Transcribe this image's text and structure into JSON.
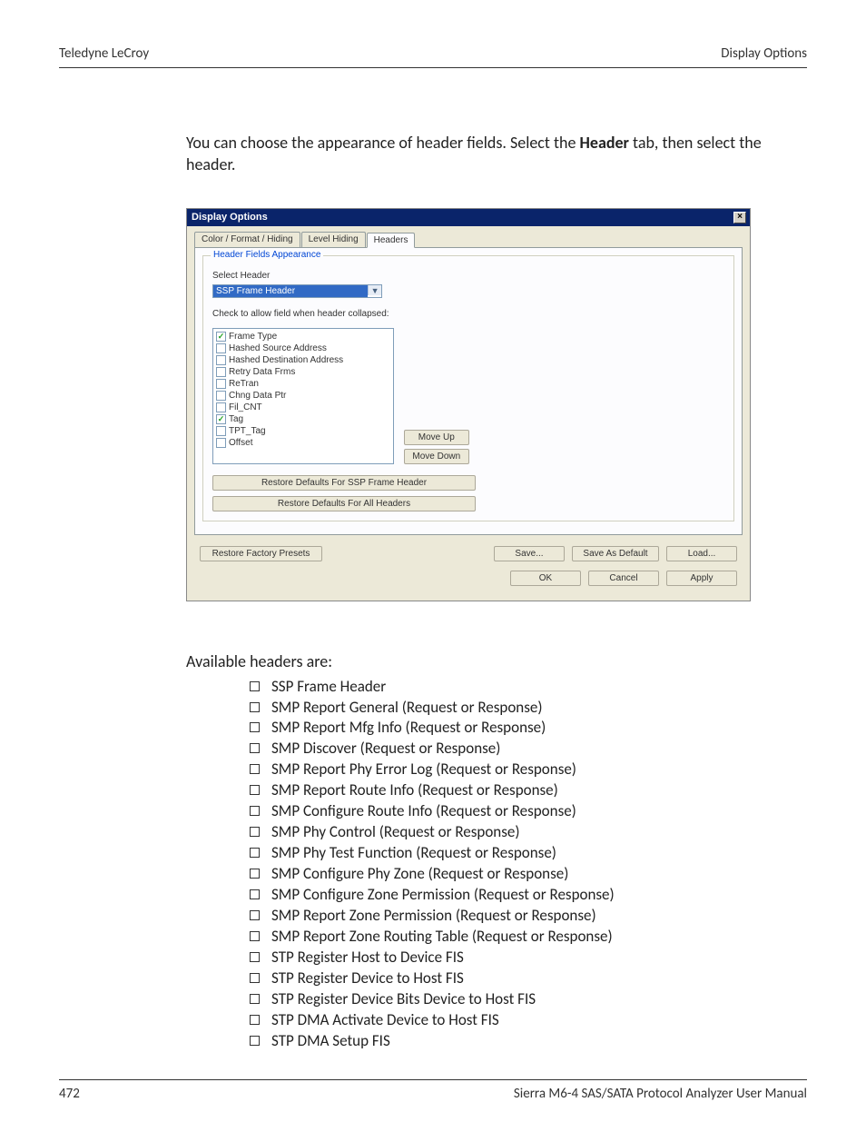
{
  "header": {
    "left": "Teledyne LeCroy",
    "right": "Display Options"
  },
  "intro": {
    "pre": "You can choose the appearance of header fields. Select the ",
    "bold": "Header",
    "post": " tab, then select the header."
  },
  "dialog": {
    "title": "Display Options",
    "tabs": [
      "Color / Format / Hiding",
      "Level Hiding",
      "Headers"
    ],
    "active_tab": 2,
    "group_title": "Header Fields Appearance",
    "select_label": "Select Header",
    "select_value": "SSP Frame Header",
    "check_caption": "Check to allow field when header collapsed:",
    "fields": [
      {
        "label": "Frame Type",
        "checked": true
      },
      {
        "label": "Hashed Source Address",
        "checked": false
      },
      {
        "label": "Hashed Destination Address",
        "checked": false
      },
      {
        "label": "Retry Data Frms",
        "checked": false
      },
      {
        "label": "ReTran",
        "checked": false
      },
      {
        "label": "Chng Data Ptr",
        "checked": false
      },
      {
        "label": "Fil_CNT",
        "checked": false
      },
      {
        "label": "Tag",
        "checked": true
      },
      {
        "label": "TPT_Tag",
        "checked": false
      },
      {
        "label": "Offset",
        "checked": false
      }
    ],
    "move_up": "Move Up",
    "move_down": "Move Down",
    "restore_one": "Restore Defaults For SSP Frame Header",
    "restore_all": "Restore Defaults For All Headers",
    "restore_factory": "Restore Factory Presets",
    "save": "Save...",
    "save_default": "Save As Default",
    "load": "Load...",
    "ok": "OK",
    "cancel": "Cancel",
    "apply": "Apply"
  },
  "avail_heading": "Available headers are:",
  "avail_list": [
    "SSP Frame Header",
    "SMP Report General (Request or Response)",
    "SMP Report Mfg Info (Request or Response)",
    "SMP Discover (Request or Response)",
    "SMP Report Phy Error Log (Request or Response)",
    "SMP Report Route Info (Request or Response)",
    "SMP Configure Route Info (Request or Response)",
    "SMP Phy Control (Request or Response)",
    "SMP Phy Test Function (Request or Response)",
    "SMP Configure Phy Zone (Request or Response)",
    "SMP Configure Zone Permission (Request or Response)",
    "SMP Report Zone Permission (Request or Response)",
    "SMP Report Zone Routing Table (Request or Response)",
    "STP Register Host to Device FIS",
    "STP Register Device to Host FIS",
    "STP Register Device Bits Device to Host FIS",
    "STP DMA Activate Device to Host FIS",
    "STP DMA Setup FIS"
  ],
  "footer": {
    "page": "472",
    "manual": "Sierra M6-4 SAS/SATA Protocol Analyzer User Manual"
  }
}
